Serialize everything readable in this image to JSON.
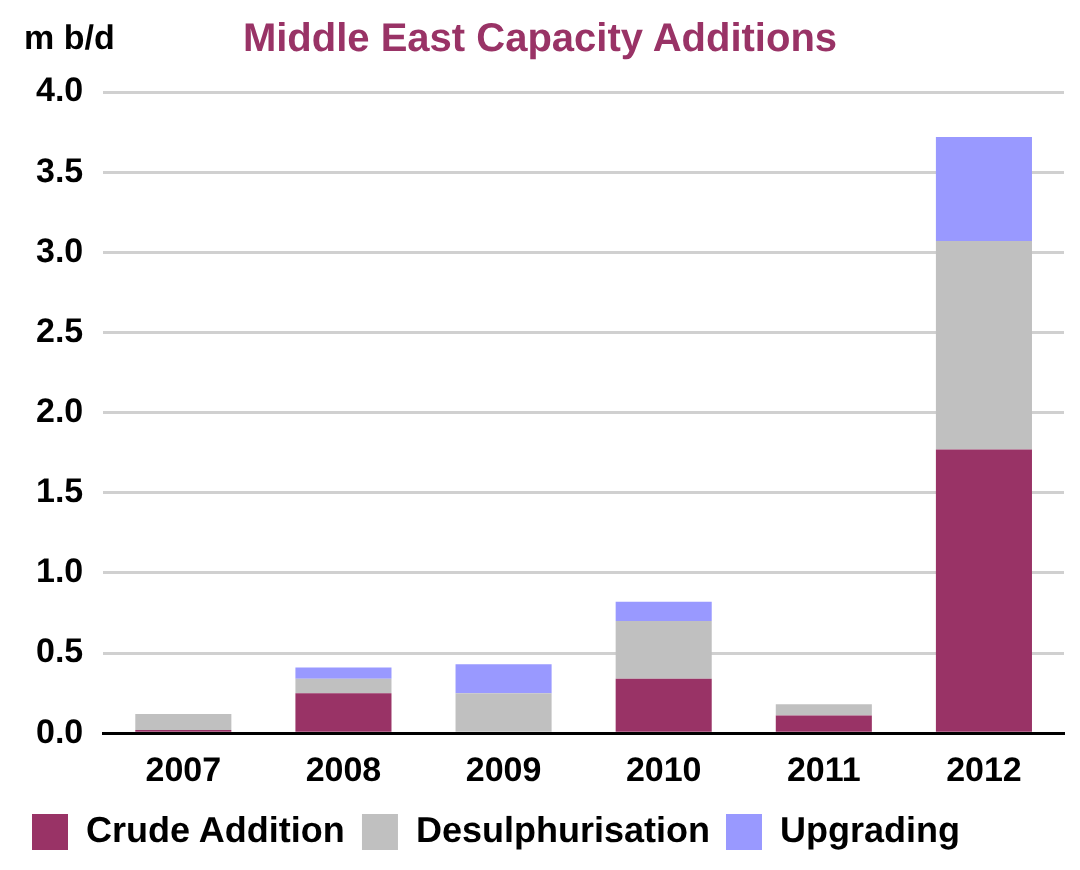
{
  "chart_data": {
    "type": "bar",
    "title": "Middle East Capacity Additions",
    "ylabel": "m b/d",
    "categories": [
      "2007",
      "2008",
      "2009",
      "2010",
      "2011",
      "2012"
    ],
    "stacked": true,
    "series": [
      {
        "name": "Crude Addition",
        "color": "#993366",
        "values": [
          0.02,
          0.25,
          0,
          0.34,
          0.11,
          1.77
        ]
      },
      {
        "name": "Desulphurisation",
        "color": "#c0c0c0",
        "values": [
          0.1,
          0.09,
          0.25,
          0.36,
          0.07,
          1.3
        ]
      },
      {
        "name": "Upgrading",
        "color": "#9999ff",
        "values": [
          0,
          0.07,
          0.18,
          0.12,
          0,
          0.65
        ]
      }
    ],
    "ylim": [
      0,
      4
    ],
    "yticks": [
      {
        "value": 0,
        "label": "0.0"
      },
      0.5,
      {
        "value": 1,
        "label": "1.0"
      },
      1.5,
      {
        "value": 2,
        "label": "2.0"
      },
      2.5,
      {
        "value": 3,
        "label": "3.0"
      },
      3.5,
      {
        "value": 4,
        "label": "4.0"
      }
    ],
    "grid": "y",
    "legend": "bottom"
  }
}
